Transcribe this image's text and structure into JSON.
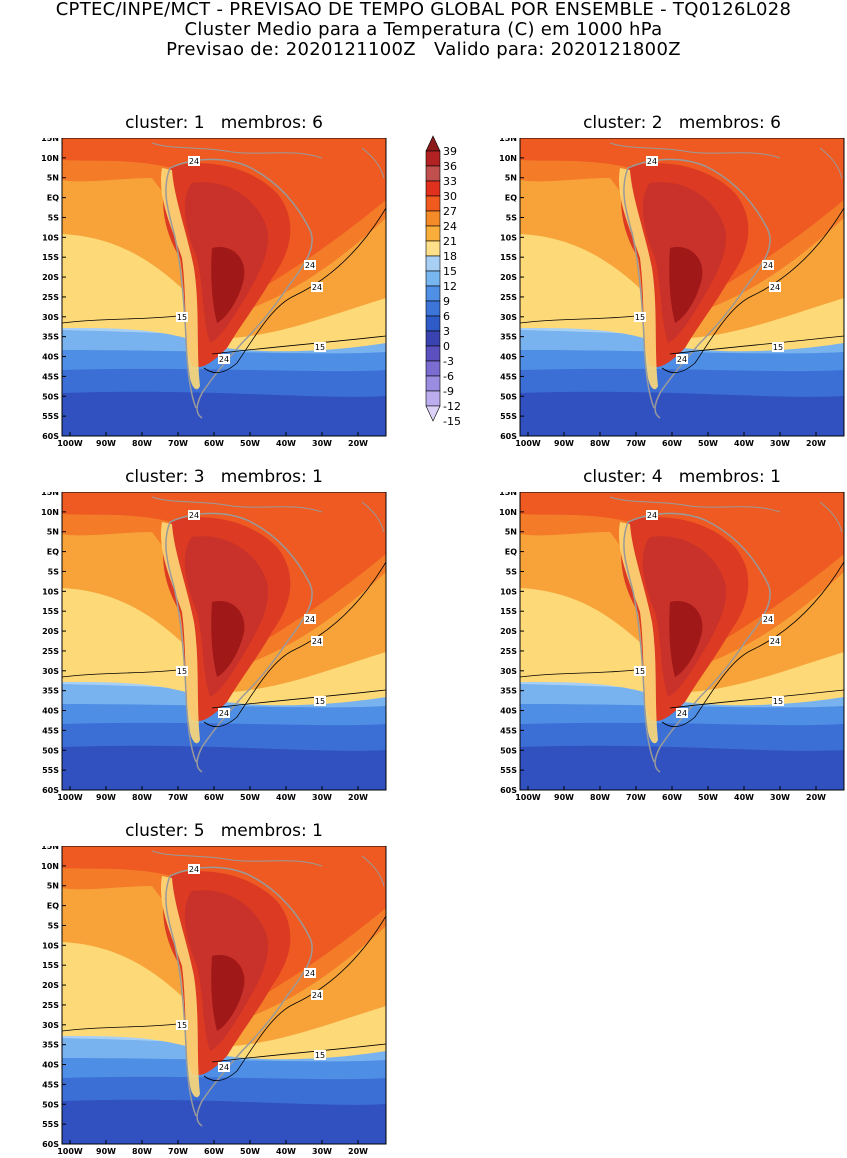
{
  "header": {
    "line1": "CPTEC/INPE/MCT - PREVISAO DE TEMPO GLOBAL POR ENSEMBLE - TQ0126L028",
    "line2": "Cluster Medio para a Temperatura (C) em 1000 hPa",
    "line3": "Previsao de: 2020121100Z   Valido para: 2020121800Z"
  },
  "panels": [
    {
      "title": "cluster: 1   membros: 6"
    },
    {
      "title": "cluster: 2   membros: 6"
    },
    {
      "title": "cluster: 3   membros: 1"
    },
    {
      "title": "cluster: 4   membros: 1"
    },
    {
      "title": "cluster: 5   membros: 1"
    }
  ],
  "lat_labels": [
    "15N",
    "10N",
    "5N",
    "EQ",
    "5S",
    "10S",
    "15S",
    "20S",
    "25S",
    "30S",
    "35S",
    "40S",
    "45S",
    "50S",
    "55S",
    "60S"
  ],
  "lon_labels": [
    "100W",
    "90W",
    "80W",
    "70W",
    "60W",
    "50W",
    "40W",
    "30W",
    "20W"
  ],
  "contour_labels": [
    "24",
    "24",
    "24",
    "15",
    "24",
    "15"
  ],
  "colorbar": {
    "labels": [
      "39",
      "36",
      "33",
      "30",
      "27",
      "24",
      "21",
      "18",
      "15",
      "12",
      "9",
      "6",
      "3",
      "0",
      "-3",
      "-6",
      "-9",
      "-12",
      "-15"
    ],
    "colors": [
      "#8b1a1a",
      "#b22222",
      "#c0504d",
      "#e0301e",
      "#f05a1e",
      "#f58a28",
      "#f9ae3c",
      "#fde089",
      "#a8d0f5",
      "#78b6f0",
      "#4f90e6",
      "#3c74d8",
      "#2f5bc8",
      "#3a44b0",
      "#5a50c0",
      "#7a6cd0",
      "#9a8ce0",
      "#bcaeee",
      "#dcd2f8"
    ]
  }
}
